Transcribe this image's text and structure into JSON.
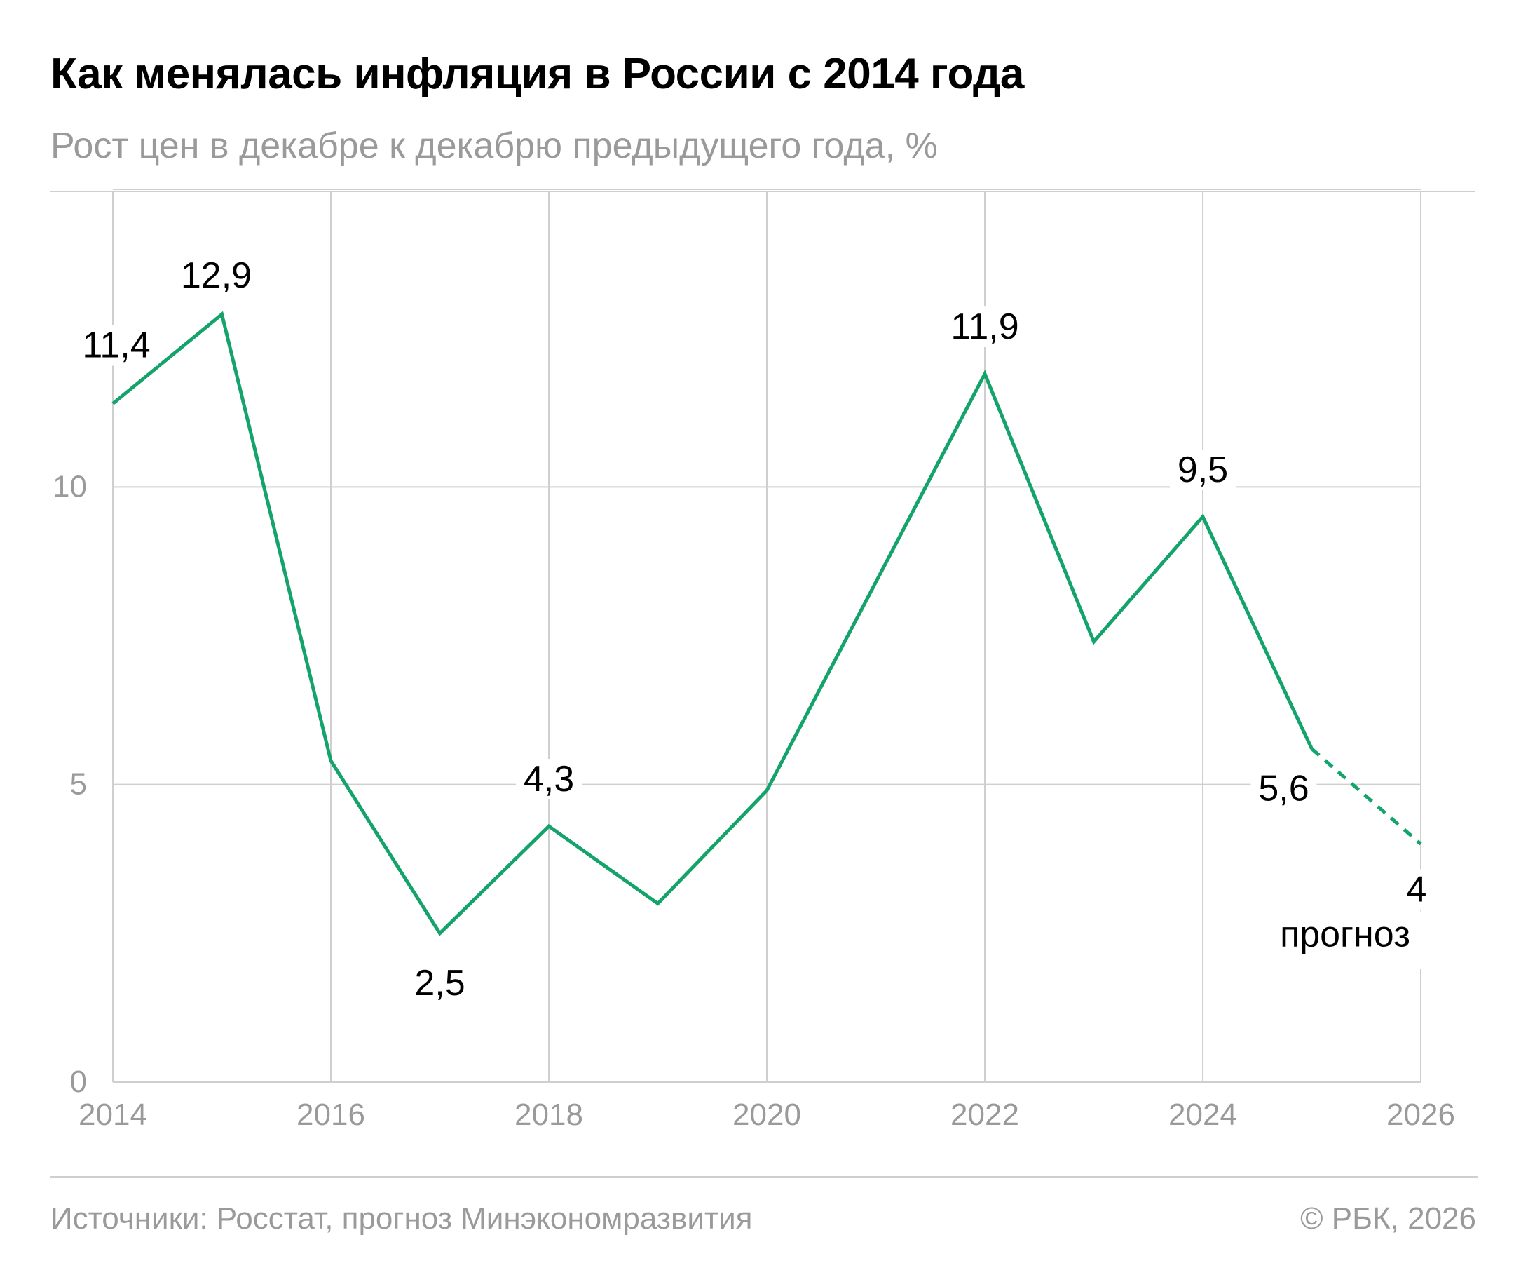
{
  "colors": {
    "line": "#13a36b",
    "grid": "#cfcfcf",
    "axis_text": "#9a9a9a",
    "label_text": "#000000"
  },
  "chart_data": {
    "type": "line",
    "title": "Как менялась инфляция в России с 2014 года",
    "subtitle": "Рост цен в декабре к декабрю предыдущего года, %",
    "x_ticks": [
      "2014",
      "2016",
      "2018",
      "2020",
      "2022",
      "2024",
      "2026"
    ],
    "y_ticks": [
      "0",
      "5",
      "10"
    ],
    "xlim": [
      2014,
      2026
    ],
    "ylim": [
      0,
      15
    ],
    "grid": true,
    "series": [
      {
        "style": "solid",
        "x": [
          2014,
          2015,
          2016,
          2017,
          2018,
          2019,
          2020,
          2021,
          2022,
          2023,
          2024,
          2025
        ],
        "y": [
          11.4,
          12.9,
          5.4,
          2.5,
          4.3,
          3.0,
          4.9,
          8.4,
          11.9,
          7.4,
          9.5,
          5.6
        ]
      },
      {
        "style": "dashed",
        "x": [
          2025,
          2026
        ],
        "y": [
          5.6,
          4.0
        ]
      }
    ],
    "data_labels": [
      {
        "x": 2014,
        "y": 11.4,
        "text": "11,4"
      },
      {
        "x": 2015,
        "y": 12.9,
        "text": "12,9"
      },
      {
        "x": 2017,
        "y": 2.5,
        "text": "2,5"
      },
      {
        "x": 2018,
        "y": 4.3,
        "text": "4,3"
      },
      {
        "x": 2022,
        "y": 11.9,
        "text": "11,9"
      },
      {
        "x": 2024,
        "y": 9.5,
        "text": "9,5"
      },
      {
        "x": 2025,
        "y": 5.6,
        "text": "5,6"
      },
      {
        "x": 2026,
        "y": 4.0,
        "text": "4"
      }
    ],
    "annotations": [
      {
        "x": 2026,
        "text": "прогноз"
      }
    ]
  },
  "footer": {
    "source": "Источники: Росстат, прогноз Минэкономразвития",
    "copyright": "© РБК, 2026"
  }
}
